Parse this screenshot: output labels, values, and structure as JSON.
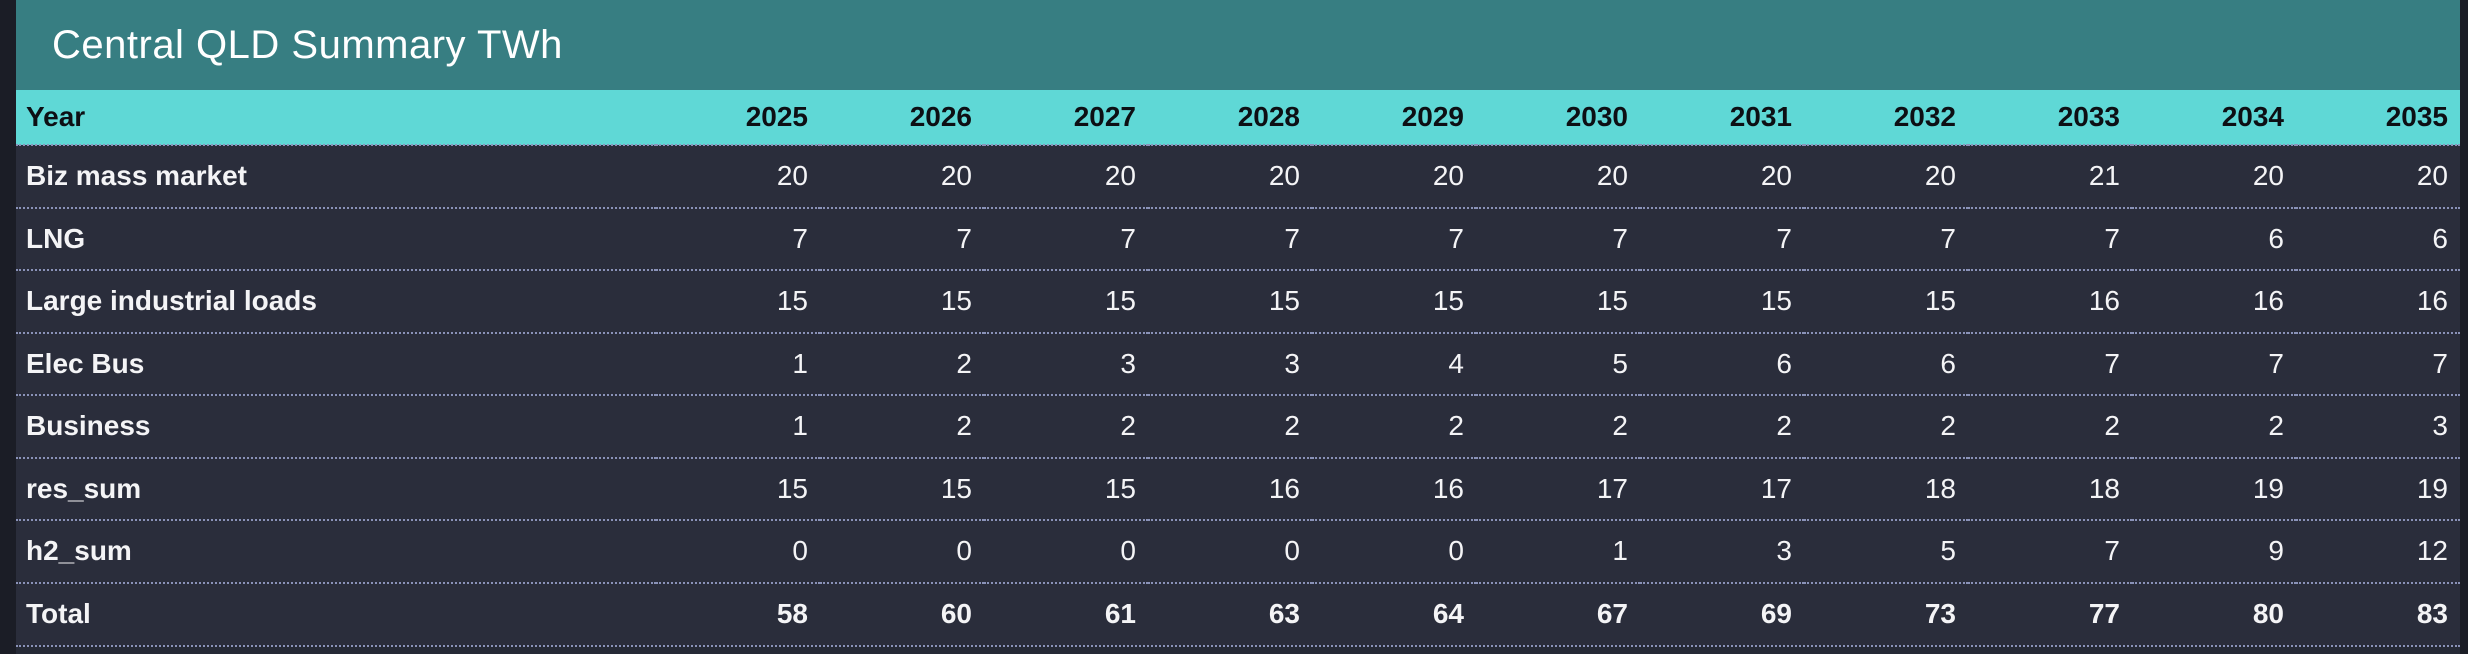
{
  "title": "Central QLD Summary TWh",
  "chart_data": {
    "type": "table",
    "title": "Central QLD Summary TWh",
    "unit": "TWh",
    "header_label": "Year",
    "categories": [
      "2025",
      "2026",
      "2027",
      "2028",
      "2029",
      "2030",
      "2031",
      "2032",
      "2033",
      "2034",
      "2035"
    ],
    "series": [
      {
        "name": "Biz mass market",
        "values": [
          20,
          20,
          20,
          20,
          20,
          20,
          20,
          20,
          21,
          20,
          20
        ]
      },
      {
        "name": "LNG",
        "values": [
          7,
          7,
          7,
          7,
          7,
          7,
          7,
          7,
          7,
          6,
          6
        ]
      },
      {
        "name": "Large industrial loads",
        "values": [
          15,
          15,
          15,
          15,
          15,
          15,
          15,
          15,
          16,
          16,
          16
        ]
      },
      {
        "name": "Elec Bus",
        "values": [
          1,
          2,
          3,
          3,
          4,
          5,
          6,
          6,
          7,
          7,
          7
        ]
      },
      {
        "name": "Business",
        "values": [
          1,
          2,
          2,
          2,
          2,
          2,
          2,
          2,
          2,
          2,
          3
        ]
      },
      {
        "name": "res_sum",
        "values": [
          15,
          15,
          15,
          16,
          16,
          17,
          17,
          18,
          18,
          19,
          19
        ]
      },
      {
        "name": "h2_sum",
        "values": [
          0,
          0,
          0,
          0,
          0,
          1,
          3,
          5,
          7,
          9,
          12
        ]
      },
      {
        "name": "Total",
        "values": [
          58,
          60,
          61,
          63,
          64,
          67,
          69,
          73,
          77,
          80,
          83
        ]
      }
    ],
    "layout_hints": {
      "label_column_align": "left",
      "value_columns_align": "right",
      "total_row_bold": true,
      "row_separator_style": "dotted"
    }
  },
  "colors": {
    "page_bg": "#1b1d26",
    "title_bar_bg": "#377e82",
    "title_text": "#ffffff",
    "header_bg": "#5fd8d6",
    "header_text": "#0d0f14",
    "row_bg": "#2a2d3b",
    "row_bg_bottom": "#262a36",
    "row_text": "#f4f4f6",
    "separator": "#8a92b8"
  }
}
